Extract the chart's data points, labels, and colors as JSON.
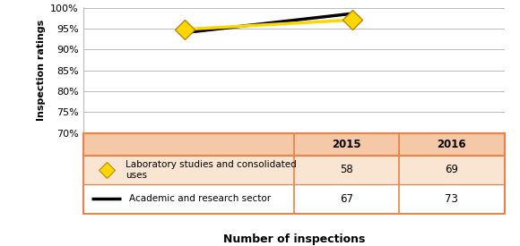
{
  "years": [
    2015,
    2016
  ],
  "lab_values": [
    0.9483,
    0.971
  ],
  "academic_values": [
    0.9403,
    0.9863
  ],
  "lab_counts_2015": 58,
  "lab_counts_2016": 69,
  "academic_counts_2015": 67,
  "academic_counts_2016": 73,
  "ylabel": "Inspection ratings",
  "xlabel": "Number of inspections",
  "ylim_min": 0.7,
  "ylim_max": 1.0,
  "yticks": [
    0.7,
    0.75,
    0.8,
    0.85,
    0.9,
    0.95,
    1.0
  ],
  "ytick_labels": [
    "70%",
    "75%",
    "80%",
    "85%",
    "90%",
    "95%",
    "100%"
  ],
  "table_header_bg": "#F5C9A8",
  "table_row_bg": "#FAE5D3",
  "table_border_color": "#E8834A",
  "lab_color": "#FFD700",
  "lab_edge_color": "#B8860B",
  "academic_color": "#000000",
  "lab_label": "Laboratory studies and consolidated\nuses",
  "academic_label": "Academic and research sector",
  "header_2015": "2015",
  "header_2016": "2016",
  "xlim": [
    2014.4,
    2016.9
  ]
}
